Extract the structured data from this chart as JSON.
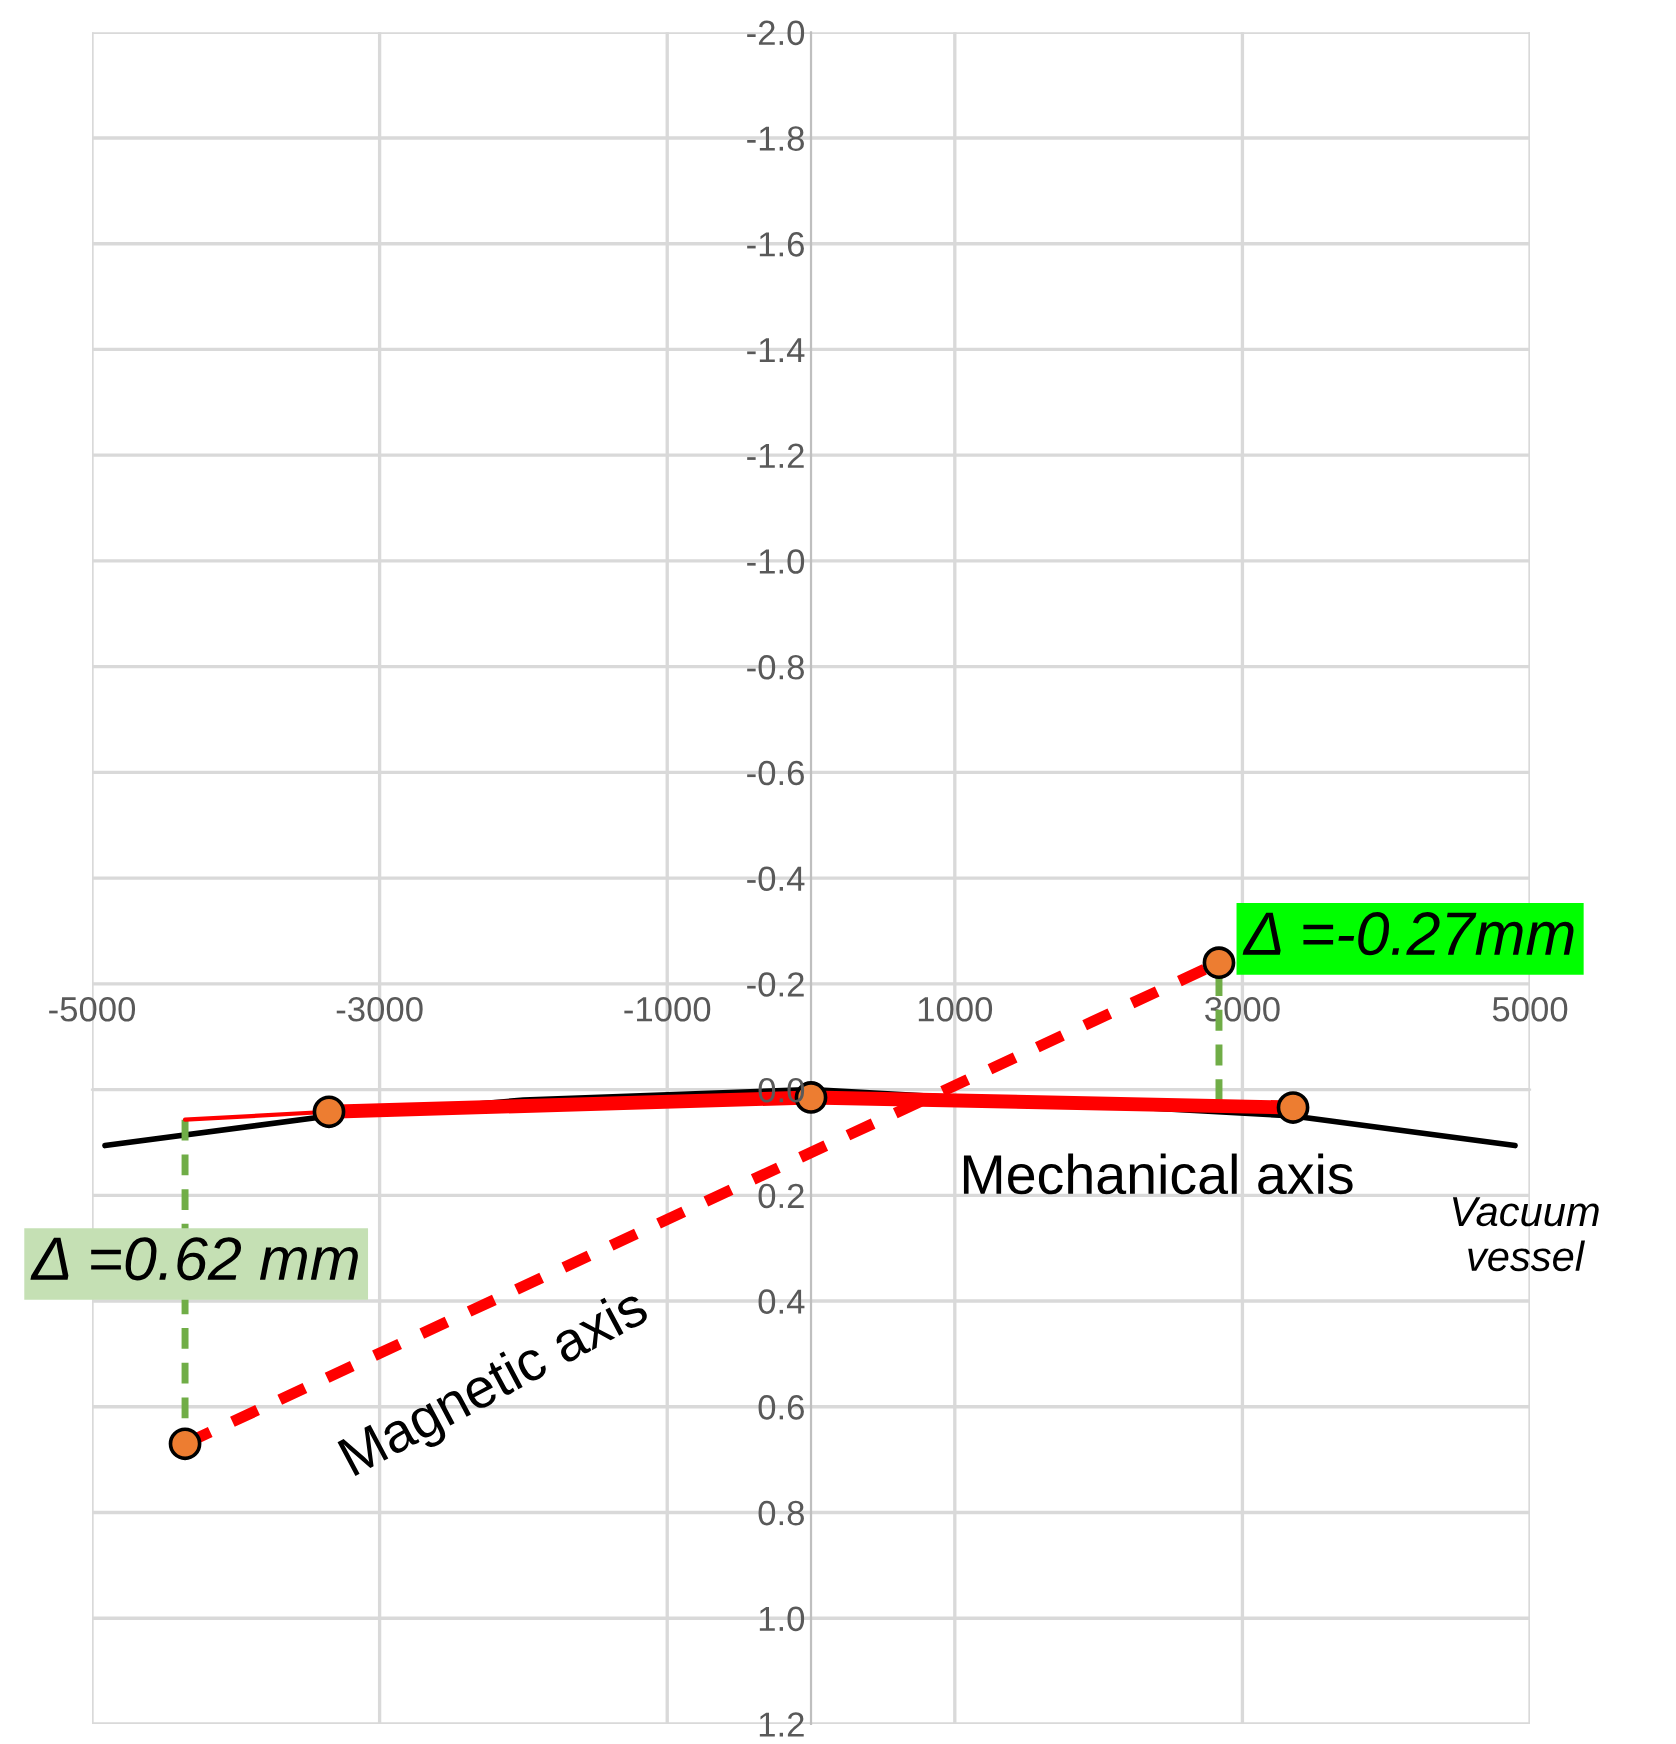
{
  "chart_data": {
    "type": "line",
    "xlim": [
      -5000,
      5000
    ],
    "ylim": [
      1.2,
      -2.0
    ],
    "xticks": [
      -5000,
      -3000,
      -1000,
      1000,
      3000,
      5000
    ],
    "yticks": [
      {
        "value": -2,
        "label": "-2.0"
      },
      -1.8,
      -1.6,
      -1.4,
      -1.2,
      {
        "value": -1,
        "label": "-1.0"
      },
      -0.8,
      -0.6,
      -0.4,
      -0.2,
      {
        "value": 0,
        "label": "0.0"
      },
      0.2,
      0.4,
      0.6,
      0.8,
      {
        "value": 1,
        "label": "1.0"
      },
      1.2
    ],
    "grid": true,
    "legend": false,
    "series": [
      {
        "name": "Vacuum vessel",
        "color": "#000000",
        "line_style": "solid",
        "marker": "none",
        "x": [
          -4910,
          -3352,
          -2000,
          0,
          3352,
          4896
        ],
        "values": [
          0.106,
          0.05,
          0.02,
          0.0,
          0.05,
          0.106
        ]
      },
      {
        "type": "line",
        "color": "#70ad47",
        "line_style": "dashed",
        "marker": "none",
        "x": [
          -4353,
          -4353
        ],
        "values": [
          0.057,
          0.67
        ]
      },
      {
        "type": "line",
        "color": "#70ad47",
        "line_style": "dashed",
        "marker": "none",
        "x": [
          2837,
          2837
        ],
        "values": [
          0.02,
          -0.24
        ]
      },
      {
        "type": "line",
        "color": "#ff0000",
        "line_style": "solid",
        "marker": "none",
        "x": [
          -4353,
          -3352
        ],
        "values": [
          0.057,
          0.042
        ]
      },
      {
        "name": "Mechanical axis",
        "color": "#ff0000",
        "line_style": "solid",
        "marker": "none",
        "x": [
          -3352,
          0,
          3352
        ],
        "values": [
          0.042,
          0.015,
          0.034
        ]
      },
      {
        "name": "Magnetic axis",
        "color": "#ff0000",
        "line_style": "dashed",
        "marker": "none",
        "x": [
          -4353,
          2837
        ],
        "values": [
          0.67,
          -0.24
        ]
      },
      {
        "type": "scatter",
        "color": "#ed7d31",
        "marker": "circle",
        "x": [
          -4353,
          -3352,
          0,
          3352,
          2837
        ],
        "values": [
          0.67,
          0.042,
          0.015,
          0.034,
          -0.24
        ]
      }
    ],
    "annotations": [
      "Δ =0.62 mm",
      "Δ =-0.27mm"
    ]
  }
}
